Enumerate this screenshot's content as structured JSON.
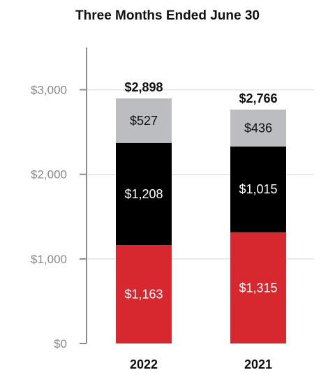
{
  "chart_data": {
    "type": "bar",
    "stacked": true,
    "title": "Three Months Ended June 30",
    "categories": [
      "2022",
      "2021"
    ],
    "series": [
      {
        "values": [
          1163,
          1315
        ],
        "labels": [
          "$1,163",
          "$1,315"
        ],
        "color": "#d7282f",
        "label_color": "#ffffff"
      },
      {
        "values": [
          1208,
          1015
        ],
        "labels": [
          "$1,208",
          "$1,015"
        ],
        "color": "#000000",
        "label_color": "#ffffff"
      },
      {
        "values": [
          527,
          436
        ],
        "labels": [
          "$527",
          "$436"
        ],
        "color": "#bcbdc0",
        "label_color": "#111111"
      }
    ],
    "totals": [
      "$2,898",
      "$2,766"
    ],
    "y_ticks": [
      0,
      1000,
      2000,
      3000
    ],
    "y_tick_labels": [
      "$0",
      "$1,000",
      "$2,000",
      "$3,000"
    ],
    "ylim": [
      0,
      3500
    ],
    "grid": true,
    "xlabel": "",
    "ylabel": ""
  }
}
